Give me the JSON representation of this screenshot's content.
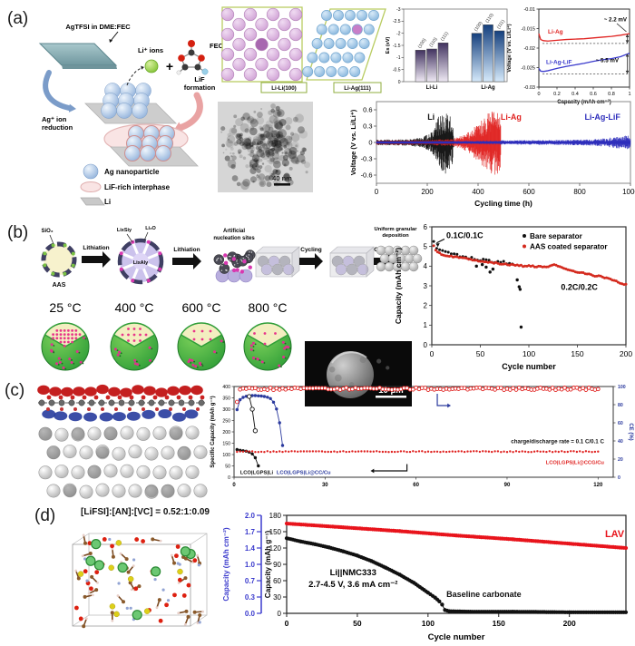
{
  "figure": {
    "panel_labels": {
      "a": "(a)",
      "b": "(b)",
      "c": "(c)",
      "d": "(d)"
    }
  },
  "panel_a": {
    "schematic": {
      "electrolyte": "AgTFSI in DME:FEC",
      "li_ions": "Li⁺ ions",
      "plus": "+",
      "fec": "FEC",
      "lif_formation_1": "LiF",
      "lif_formation_2": "formation",
      "ag_reduction_1": "Ag⁺ ion",
      "ag_reduction_2": "reduction",
      "legend": [
        "Ag nanoparticle",
        "LiF-rich interphase",
        "Li"
      ]
    },
    "crystal_left": "Li-Li(100)",
    "crystal_right": "Li-Ag(111)",
    "tem_scale": "40 nm"
  },
  "panel_b": {
    "process": {
      "sio2": "SiO₂",
      "aas": "AAS",
      "step1": "Lithiation",
      "lixsiy": "LixSiy",
      "li2o": "Li₂O",
      "lixaly": "LixAly",
      "step2": "Lithiation",
      "nucleation_1": "Artificial",
      "nucleation_2": "nucleation sites",
      "step3": "Cycling",
      "step4": "Cycling",
      "deposition_1": "Uniform granular",
      "deposition_2": "deposition"
    },
    "temperatures": [
      "25 °C",
      "400 °C",
      "600 °C",
      "800 °C"
    ],
    "sem_scale": "10 μm"
  },
  "panel_d": {
    "formula": "[LiFSI]:[AN]:[VC] = 0.52:1:0.09"
  },
  "chart_data": [
    {
      "id": "binding-energy-bars",
      "type": "bar",
      "ylabel": "Es (eV)",
      "ylim": [
        0,
        -3
      ],
      "yticks": [
        -3,
        -2.5,
        -2,
        -1.5,
        -1,
        -0.5,
        0
      ],
      "groups": [
        {
          "label": "Li-Li",
          "gradient": [
            "#41325f",
            "#efe9f4"
          ],
          "bars": [
            {
              "label": "(100)",
              "value": -1.3
            },
            {
              "label": "(110)",
              "value": -1.35
            },
            {
              "label": "(111)",
              "value": -1.6
            }
          ]
        },
        {
          "label": "Li-Ag",
          "gradient": [
            "#143f7d",
            "#d6eafb"
          ],
          "bars": [
            {
              "label": "(100)",
              "value": -2.0
            },
            {
              "label": "(110)",
              "value": -2.35
            },
            {
              "label": "(111)",
              "value": -2.1
            }
          ]
        }
      ]
    },
    {
      "id": "voltage-capacity",
      "type": "line",
      "xlabel": "Capacity (mAh cm⁻²)",
      "ylabel": "Voltage (V vs. Li/Li⁺)",
      "xlim": [
        0,
        1
      ],
      "ylim": [
        -0.03,
        -0.01
      ],
      "xticks": [
        0,
        0.2,
        0.4,
        0.6,
        0.8,
        1
      ],
      "yticks": [
        -0.01,
        -0.015,
        -0.02,
        -0.025,
        -0.03
      ],
      "series": [
        {
          "name": "Li-Ag",
          "color": "#e02321",
          "label_pos": [
            0.1,
            -0.0163
          ],
          "points": [
            [
              0,
              -0.0163
            ],
            [
              0.02,
              -0.0178
            ],
            [
              0.05,
              -0.0181
            ],
            [
              0.1,
              -0.0182
            ],
            [
              0.2,
              -0.018
            ],
            [
              0.3,
              -0.0178
            ],
            [
              0.4,
              -0.0177
            ],
            [
              0.5,
              -0.0176
            ],
            [
              0.6,
              -0.0174
            ],
            [
              0.7,
              -0.0172
            ],
            [
              0.8,
              -0.017
            ],
            [
              0.9,
              -0.0167
            ],
            [
              1,
              -0.0163
            ]
          ],
          "dash_level": -0.0188,
          "annotation": "~ 2.2 mV"
        },
        {
          "name": "Li-Ag-LiF",
          "color": "#3b3bcd",
          "label_pos": [
            0.08,
            -0.0241
          ],
          "points": [
            [
              0,
              -0.0252
            ],
            [
              0.02,
              -0.0259
            ],
            [
              0.05,
              -0.026
            ],
            [
              0.1,
              -0.0258
            ],
            [
              0.2,
              -0.0252
            ],
            [
              0.3,
              -0.0247
            ],
            [
              0.4,
              -0.0243
            ],
            [
              0.5,
              -0.0239
            ],
            [
              0.6,
              -0.0234
            ],
            [
              0.7,
              -0.023
            ],
            [
              0.8,
              -0.0227
            ],
            [
              0.9,
              -0.0222
            ],
            [
              1,
              -0.0213
            ]
          ],
          "dash_level": -0.0266,
          "annotation": "~ 5.5 mV"
        }
      ]
    },
    {
      "id": "cycling-stability",
      "type": "noise-band",
      "xlabel": "Cycling time (h)",
      "ylabel": "Voltage (V vs. Li/Li⁺)",
      "xlim": [
        0,
        1000
      ],
      "ylim": [
        -0.75,
        0.75
      ],
      "xticks": [
        0,
        200,
        400,
        600,
        800,
        1000
      ],
      "yticks": [
        0.6,
        0.3,
        0,
        -0.3,
        -0.6
      ],
      "series": [
        {
          "name": "Li",
          "color": "#111111",
          "label_x": 215,
          "label_y": 0.42,
          "core": 0.03,
          "core_end": 305,
          "envelope": [
            [
              0,
              0.05
            ],
            [
              120,
              0.06
            ],
            [
              180,
              0.09
            ],
            [
              220,
              0.2
            ],
            [
              245,
              0.5
            ],
            [
              265,
              0.58
            ],
            [
              285,
              0.55
            ],
            [
              300,
              0.4
            ],
            [
              305,
              0.15
            ]
          ]
        },
        {
          "name": "Li-Ag",
          "color": "#e02321",
          "label_x": 530,
          "label_y": 0.42,
          "core": 0.025,
          "core_end": 490,
          "envelope": [
            [
              0,
              0.04
            ],
            [
              200,
              0.045
            ],
            [
              300,
              0.07
            ],
            [
              350,
              0.15
            ],
            [
              390,
              0.3
            ],
            [
              420,
              0.45
            ],
            [
              450,
              0.58
            ],
            [
              475,
              0.6
            ],
            [
              490,
              0.55
            ]
          ]
        },
        {
          "name": "Li-Ag-LiF",
          "color": "#2d2dbb",
          "label_x": 890,
          "label_y": 0.42,
          "core": 0.02,
          "core_end": 1000,
          "envelope": [
            [
              0,
              0.03
            ],
            [
              400,
              0.035
            ],
            [
              700,
              0.045
            ],
            [
              850,
              0.06
            ],
            [
              920,
              0.09
            ],
            [
              970,
              0.12
            ],
            [
              1000,
              0.13
            ]
          ]
        }
      ]
    },
    {
      "id": "separator-cycling",
      "type": "scatter",
      "xlabel": "Cycle number",
      "ylabel": "Capacity (mAh cm⁻²)",
      "xlim": [
        0,
        200
      ],
      "ylim": [
        0,
        6
      ],
      "xticks": [
        0,
        50,
        100,
        150,
        200
      ],
      "yticks": [
        0,
        1,
        2,
        3,
        4,
        5,
        6
      ],
      "annotations": [
        {
          "text": "0.1C/0.1C",
          "x": 15,
          "y": 5.42
        },
        {
          "text": "0.2C/0.2C",
          "x": 152,
          "y": 2.8
        }
      ],
      "legend": [
        {
          "name": "Bare separator",
          "color": "#111111"
        },
        {
          "name": "AAS coated separator",
          "color": "#d42a1e"
        }
      ],
      "series": [
        {
          "name": "Bare separator",
          "color": "#111111",
          "step": 3,
          "jitter": 0.07,
          "end": 85,
          "trend": [
            [
              2,
              5.2
            ],
            [
              6,
              4.9
            ],
            [
              10,
              4.75
            ],
            [
              20,
              4.62
            ],
            [
              30,
              4.5
            ],
            [
              40,
              4.4
            ],
            [
              50,
              4.32
            ],
            [
              60,
              4.27
            ],
            [
              70,
              4.22
            ],
            [
              80,
              4.12
            ],
            [
              85,
              4.02
            ]
          ],
          "outliers": [
            [
              46,
              4.0
            ],
            [
              52,
              4.08
            ],
            [
              56,
              3.95
            ],
            [
              60,
              3.7
            ],
            [
              63,
              3.85
            ],
            [
              88,
              3.3
            ],
            [
              90,
              2.95
            ],
            [
              91,
              2.82
            ],
            [
              92,
              0.9
            ]
          ]
        },
        {
          "name": "AAS coated separator",
          "color": "#d42a1e",
          "step": 2,
          "jitter": 0.035,
          "end": 200,
          "trend": [
            [
              2,
              5.05
            ],
            [
              5,
              4.72
            ],
            [
              10,
              4.6
            ],
            [
              20,
              4.5
            ],
            [
              30,
              4.42
            ],
            [
              40,
              4.33
            ],
            [
              50,
              4.27
            ],
            [
              60,
              4.2
            ],
            [
              70,
              4.13
            ],
            [
              80,
              4.07
            ],
            [
              90,
              4.02
            ],
            [
              100,
              4.0
            ],
            [
              110,
              3.97
            ],
            [
              120,
              3.96
            ],
            [
              128,
              4.08
            ],
            [
              132,
              3.95
            ],
            [
              140,
              3.82
            ],
            [
              150,
              3.7
            ],
            [
              160,
              3.6
            ],
            [
              170,
              3.5
            ],
            [
              180,
              3.4
            ],
            [
              190,
              3.22
            ],
            [
              200,
              3.05
            ]
          ],
          "outliers": []
        }
      ]
    },
    {
      "id": "solid-state-cycling",
      "type": "multi-axis",
      "ylabel_left": "Specific Capacity (mAh g⁻¹)",
      "ylabel_right": "CE (%)",
      "xlim": [
        0,
        125
      ],
      "ylim_left": [
        0,
        400
      ],
      "ylim_right": [
        0,
        100
      ],
      "xticks": [
        0,
        30,
        60,
        90,
        120
      ],
      "yticks_left": [
        0,
        50,
        100,
        150,
        200,
        250,
        300,
        350,
        400
      ],
      "yticks_right": [
        0,
        20,
        40,
        60,
        80,
        100
      ],
      "series": [
        {
          "name": "CE",
          "color": "#e02321",
          "style": "open",
          "axis": "right",
          "const": {
            "y": 97.5,
            "x0": 2,
            "x1": 120,
            "step": 1,
            "jitter": 1.2
          },
          "ramp": [
            [
              1,
              83
            ]
          ]
        },
        {
          "name": "LCO|LGPS|Li@CCG/Cu",
          "color": "#e02321",
          "style": "dot",
          "axis": "left",
          "const": {
            "y": 113,
            "x0": 1,
            "x1": 120,
            "step": 1,
            "jitter": 2
          }
        },
        {
          "name": "LCO|LGPS|Li@CC/Cu",
          "color": "#2b3a9e",
          "style": "dotline",
          "axis": "left",
          "points": [
            [
              1,
              298
            ],
            [
              2,
              342
            ],
            [
              3,
              352
            ],
            [
              4,
              357
            ],
            [
              5,
              359
            ],
            [
              6,
              360
            ],
            [
              7,
              360
            ],
            [
              8,
              359
            ],
            [
              9,
              358
            ],
            [
              10,
              356
            ],
            [
              11,
              353
            ],
            [
              12,
              347
            ],
            [
              13,
              331
            ],
            [
              14,
              301
            ],
            [
              15,
              240
            ],
            [
              16,
              140
            ]
          ]
        },
        {
          "name": "LCO|LGPS|Li CE",
          "color": "#111111",
          "style": "openline",
          "axis": "left",
          "points": [
            [
              5,
              356
            ],
            [
              6,
              300
            ],
            [
              7,
              205
            ]
          ]
        },
        {
          "name": "LCO|LGPS|Li",
          "color": "#111111",
          "style": "dotline",
          "axis": "left",
          "points": [
            [
              1,
              122
            ],
            [
              2,
              119
            ],
            [
              3,
              117
            ],
            [
              4,
              115
            ],
            [
              5,
              111
            ],
            [
              6,
              103
            ],
            [
              7,
              86
            ],
            [
              8,
              50
            ]
          ]
        }
      ],
      "labels": [
        {
          "text": "LCO|LGPS|Li",
          "color": "#111111",
          "x": 2,
          "y": 14,
          "anchor": "start"
        },
        {
          "text": "LCO|LGPS|Li@CC/Cu",
          "color": "#2b3a9e",
          "x": 14,
          "y": 14,
          "anchor": "start"
        },
        {
          "text": "charge/discharge rate = 0.1 C/0.1 C",
          "color": "#111111",
          "x": 122,
          "y": 150,
          "anchor": "end"
        },
        {
          "text": "LCO|LGPS|Li@CCG/Cu",
          "color": "#e02321",
          "x": 122,
          "y": 58,
          "anchor": "end"
        }
      ]
    },
    {
      "id": "lav-cycling",
      "type": "line",
      "xlabel": "Cycle number",
      "ylabel_outer": "Capacity (mAh cm⁻²)",
      "ylabel_inner": "Capacity (mAh g⁻¹)",
      "xlim": [
        0,
        240
      ],
      "ylim": [
        0,
        180
      ],
      "xticks": [
        0,
        50,
        100,
        150,
        200
      ],
      "yticks_inner": [
        0,
        30,
        60,
        90,
        120,
        150,
        180
      ],
      "yticks_outer": [
        "0.0",
        "0.3",
        "0.7",
        "1.0",
        "1.4",
        "1.7",
        "2.0"
      ],
      "cell_line1": "Li||NMC333",
      "cell_line2": "2.7-4.5 V, 3.6 mA cm⁻²",
      "accent_blue": "#3b3bcd",
      "series": [
        {
          "name": "LAV",
          "color": "#e8141c",
          "label_x": 232,
          "label_y": 140,
          "points": [
            [
              0,
              165
            ],
            [
              40,
              158
            ],
            [
              80,
              151
            ],
            [
              120,
              143
            ],
            [
              160,
              136
            ],
            [
              200,
              128
            ],
            [
              240,
              120
            ]
          ]
        },
        {
          "name": "Baseline carbonate",
          "color": "#111111",
          "label_x": 113,
          "label_y": 30,
          "points": [
            [
              0,
              138
            ],
            [
              10,
              132
            ],
            [
              20,
              127
            ],
            [
              30,
              121
            ],
            [
              40,
              114
            ],
            [
              50,
              106
            ],
            [
              60,
              96
            ],
            [
              70,
              84
            ],
            [
              80,
              71
            ],
            [
              90,
              56
            ],
            [
              100,
              38
            ],
            [
              105,
              29
            ],
            [
              108,
              22
            ],
            [
              110,
              16
            ],
            [
              112,
              6
            ],
            [
              115,
              4
            ],
            [
              130,
              3
            ],
            [
              160,
              3
            ],
            [
              200,
              2
            ],
            [
              240,
              2
            ]
          ]
        }
      ]
    }
  ]
}
